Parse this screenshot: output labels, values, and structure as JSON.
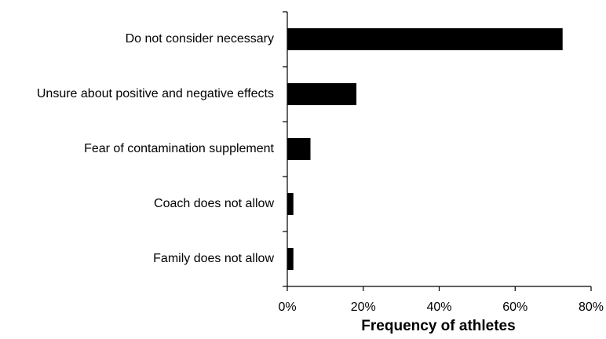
{
  "chart_data": {
    "type": "bar",
    "orientation": "horizontal",
    "categories": [
      "Do not consider necessary",
      "Unsure about positive and negative effects",
      "Fear of contamination supplement",
      "Coach does not allow",
      "Family does not allow"
    ],
    "values": [
      72.5,
      18.2,
      6.1,
      1.6,
      1.6
    ],
    "value_unit": "%",
    "xlabel": "Frequency of athletes",
    "ylabel": "",
    "xlim": [
      0,
      80
    ],
    "x_ticks": [
      0,
      20,
      40,
      60,
      80
    ],
    "x_tick_labels": [
      "0%",
      "20%",
      "40%",
      "60%",
      "80%"
    ],
    "grid": false,
    "legend": "none",
    "bar_color": "#000000"
  }
}
